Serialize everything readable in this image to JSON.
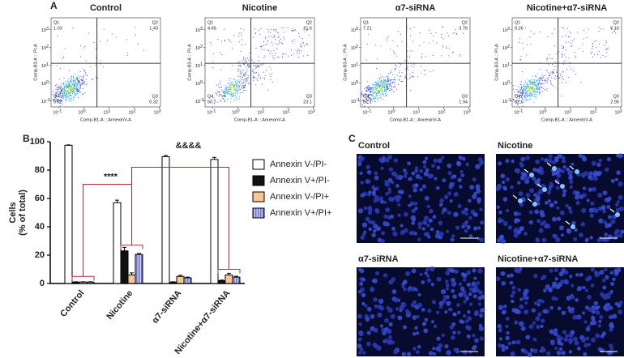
{
  "panel_labels": [
    "A",
    "B",
    "C"
  ],
  "flow": {
    "x_label": "Comp-B1-A :: AnnexinV-A",
    "y_label": "Comp-B3-A :: PI-A",
    "tick_base": "10",
    "tick_exponents": [
      "-1",
      "0",
      "1",
      "2",
      "3"
    ],
    "plots": [
      {
        "title": "Control",
        "quadrants": [
          {
            "name": "Q1",
            "value": 1.03
          },
          {
            "name": "Q2",
            "value": 1.43
          },
          {
            "name": "Q3",
            "value": 0.32
          },
          {
            "name": "Q4",
            "value": 97.2
          }
        ]
      },
      {
        "title": "Nicotine",
        "quadrants": [
          {
            "name": "Q1",
            "value": 4.65
          },
          {
            "name": "Q2",
            "value": 21.6
          },
          {
            "name": "Q3",
            "value": 23.1
          },
          {
            "name": "Q4",
            "value": 50.7
          }
        ]
      },
      {
        "title": "α7-siRNA",
        "quadrants": [
          {
            "name": "Q1",
            "value": 7.21
          },
          {
            "name": "Q2",
            "value": 3.76
          },
          {
            "name": "Q3",
            "value": 1.94
          },
          {
            "name": "Q4",
            "value": 87.1
          }
        ]
      },
      {
        "title": "Nicotine+α7-siRNA",
        "quadrants": [
          {
            "name": "Q1",
            "value": 9.26
          },
          {
            "name": "Q2",
            "value": 5.16
          },
          {
            "name": "Q3",
            "value": 2.95
          },
          {
            "name": "Q4",
            "value": 82.6
          }
        ]
      }
    ]
  },
  "chart_data": {
    "type": "bar",
    "y_label": [
      "Cells",
      "(% of total)"
    ],
    "categories": [
      "Control",
      "Nicotine",
      "α7-siRNA",
      "Nicotine+α7-siRNA"
    ],
    "series": [
      {
        "name": "Annexin V-/PI-",
        "color": "#ffffff",
        "values": [
          97.5,
          57,
          89.5,
          87.5
        ],
        "errors": [
          0.3,
          1.8,
          0.8,
          1.5
        ]
      },
      {
        "name": "Annexin V+/PI-",
        "color": "#111111",
        "values": [
          1,
          23,
          1,
          2
        ],
        "errors": [
          0.2,
          2.5,
          0.2,
          0.4
        ]
      },
      {
        "name": "Annexin V-/PI+",
        "color": "#f6c693",
        "values": [
          1,
          6,
          5,
          6
        ],
        "errors": [
          0.2,
          1.5,
          0.8,
          1.2
        ]
      },
      {
        "name": "Annexin V+/PI+",
        "color": "#a6acea",
        "hatch": "vertical",
        "values": [
          1,
          20.5,
          4,
          4.5
        ],
        "errors": [
          0.2,
          0.7,
          0.5,
          0.6
        ]
      }
    ],
    "ylim": [
      0,
      100
    ],
    "yticks": [
      0,
      20,
      40,
      60,
      80,
      100
    ],
    "annotations": [
      "****",
      "&&&&"
    ]
  },
  "images": {
    "titles": [
      "Control",
      "Nicotine",
      "α7-siRNA",
      "Nicotine+α7-siRNA"
    ]
  }
}
